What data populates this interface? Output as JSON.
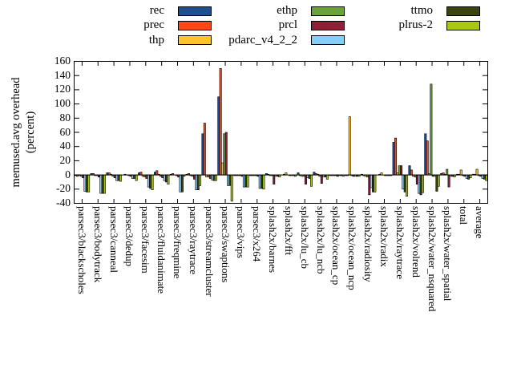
{
  "y_axis_title": {
    "line1": "memused.avg overhead",
    "line2": "(percent)"
  },
  "chart_data": {
    "type": "bar",
    "title": "",
    "xlabel": "",
    "ylabel": "memused.avg overhead (percent)",
    "ylim": [
      -40,
      160
    ],
    "yticks": [
      160,
      140,
      120,
      100,
      80,
      60,
      40,
      20,
      0,
      -20,
      -40
    ],
    "grid": false,
    "legend_position": "top",
    "zero_axis_line": true,
    "axis_color": "#000000",
    "background_color": "#ffffff",
    "categories": [
      "parsec3/blackscholes",
      "parsec3/bodytrack",
      "parsec3/canneal",
      "parsec3/dedup",
      "parsec3/facesim",
      "parsec3/fluidanimate",
      "parsec3/freqmine",
      "parsec3/raytrace",
      "parsec3/streamcluster",
      "parsec3/swaptions",
      "parsec3/vips",
      "parsec3/x264",
      "splash2x/barnes",
      "splash2x/fft",
      "splash2x/lu_cb",
      "splash2x/lu_ncb",
      "splash2x/ocean_cp",
      "splash2x/ocean_ncp",
      "splash2x/radiosity",
      "splash2x/radix",
      "splash2x/raytrace",
      "splash2x/volrend",
      "splash2x/water_nsquared",
      "splash2x/water_spatial",
      "total",
      "average"
    ],
    "series": [
      {
        "name": "rec",
        "color": "#1d4f91",
        "values": [
          -1,
          2,
          3,
          0,
          3,
          4,
          1,
          1,
          58,
          110,
          -1,
          -1,
          2,
          0,
          3,
          4,
          -1,
          -1,
          1,
          0,
          46,
          13,
          58,
          2,
          1,
          1
        ]
      },
      {
        "name": "prec",
        "color": "#ff4716",
        "values": [
          -2,
          2,
          3,
          1,
          4,
          6,
          2,
          2,
          73,
          150,
          -1,
          -1,
          1,
          1,
          -1,
          2,
          -1,
          -1,
          -1,
          1,
          52,
          7,
          48,
          3,
          1,
          1
        ]
      },
      {
        "name": "thp",
        "color": "#ffc42a",
        "values": [
          -1,
          -1,
          1,
          0,
          -2,
          1,
          0,
          -1,
          -3,
          17,
          -1,
          -1,
          -1,
          3,
          -2,
          1,
          -1,
          82,
          -2,
          3,
          3,
          -2,
          2,
          1,
          7,
          8
        ]
      },
      {
        "name": "ethp",
        "color": "#6aa338",
        "values": [
          -2,
          -1,
          -2,
          -1,
          -3,
          -2,
          -1,
          -2,
          -3,
          58,
          -1,
          -1,
          -1,
          0,
          -2,
          -2,
          -1,
          -1,
          -3,
          0,
          13,
          -3,
          128,
          8,
          -1,
          -1
        ]
      },
      {
        "name": "prcl",
        "color": "#8d2036",
        "values": [
          -4,
          -3,
          -4,
          -2,
          -5,
          -4,
          -3,
          -6,
          -5,
          60,
          -2,
          -2,
          -13,
          -1,
          -13,
          -12,
          -2,
          -2,
          -28,
          -1,
          13,
          -13,
          -2,
          -17,
          -2,
          -2
        ]
      },
      {
        "name": "pdarc_v4_2_2",
        "color": "#87cefa",
        "values": [
          -23,
          -26,
          -8,
          -5,
          -17,
          -8,
          -24,
          -21,
          -7,
          -15,
          -17,
          -19,
          -2,
          -1,
          -4,
          -3,
          -1,
          -2,
          -18,
          -1,
          -20,
          -26,
          -2,
          -2,
          -5,
          -5
        ]
      },
      {
        "name": "ttmo",
        "color": "#3d430d",
        "values": [
          -24,
          -26,
          -8,
          -5,
          -19,
          -10,
          -24,
          -21,
          -8,
          -15,
          -17,
          -19,
          -2,
          -1,
          -5,
          -3,
          -1,
          -2,
          -24,
          -1,
          -24,
          -28,
          -23,
          -2,
          -6,
          -6
        ]
      },
      {
        "name": "plrus-2",
        "color": "#aac812",
        "values": [
          -24,
          -26,
          -9,
          -8,
          -21,
          -13,
          -2,
          -15,
          -8,
          -37,
          -17,
          -20,
          -3,
          -2,
          -16,
          -6,
          -2,
          -2,
          -24,
          -1,
          -30,
          -25,
          -16,
          -3,
          -4,
          -8
        ]
      }
    ]
  }
}
